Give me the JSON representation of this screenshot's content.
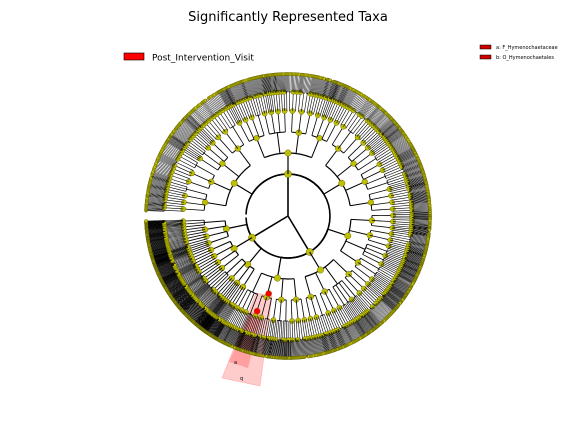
{
  "figure": {
    "title": "Significantly Represented Taxa",
    "main_legend": {
      "label": "Post_Intervention_Visit",
      "color": "#ff0000"
    },
    "clade_legend": [
      {
        "label": "a: F_Hymenochaetaceae",
        "color": "#cc0000"
      },
      {
        "label": "b: O_Hymenochaetales",
        "color": "#cc0000"
      }
    ],
    "highlighted_clades": [
      {
        "letter": "a",
        "color": "#ff0000"
      },
      {
        "letter": "q",
        "color": "#ff0000"
      }
    ],
    "node_color": "#bfbf00",
    "highlight_node_color": "#ff0000",
    "edge_color": "#000000"
  }
}
